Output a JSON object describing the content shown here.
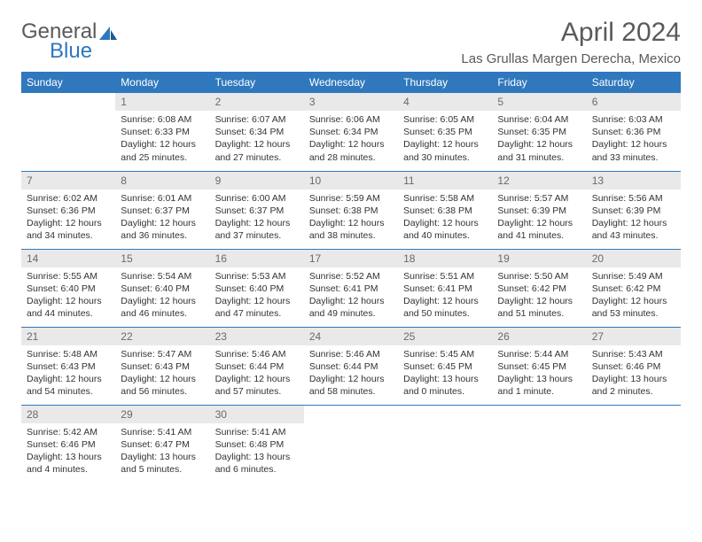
{
  "logo": {
    "text_left": "General",
    "text_right": "Blue"
  },
  "title": "April 2024",
  "location": "Las Grullas Margen Derecha, Mexico",
  "colors": {
    "header_bg": "#2f78bd",
    "header_text": "#ffffff",
    "daynum_bg": "#e9e9e9",
    "daynum_text": "#6a6a6a",
    "body_text": "#333333",
    "rule": "#2f78bd",
    "title_text": "#5a5a5a"
  },
  "weekdays": [
    "Sunday",
    "Monday",
    "Tuesday",
    "Wednesday",
    "Thursday",
    "Friday",
    "Saturday"
  ],
  "grid": [
    [
      {
        "empty": true
      },
      {
        "n": "1",
        "sr": "Sunrise: 6:08 AM",
        "ss": "Sunset: 6:33 PM",
        "dl": "Daylight: 12 hours and 25 minutes."
      },
      {
        "n": "2",
        "sr": "Sunrise: 6:07 AM",
        "ss": "Sunset: 6:34 PM",
        "dl": "Daylight: 12 hours and 27 minutes."
      },
      {
        "n": "3",
        "sr": "Sunrise: 6:06 AM",
        "ss": "Sunset: 6:34 PM",
        "dl": "Daylight: 12 hours and 28 minutes."
      },
      {
        "n": "4",
        "sr": "Sunrise: 6:05 AM",
        "ss": "Sunset: 6:35 PM",
        "dl": "Daylight: 12 hours and 30 minutes."
      },
      {
        "n": "5",
        "sr": "Sunrise: 6:04 AM",
        "ss": "Sunset: 6:35 PM",
        "dl": "Daylight: 12 hours and 31 minutes."
      },
      {
        "n": "6",
        "sr": "Sunrise: 6:03 AM",
        "ss": "Sunset: 6:36 PM",
        "dl": "Daylight: 12 hours and 33 minutes."
      }
    ],
    [
      {
        "n": "7",
        "sr": "Sunrise: 6:02 AM",
        "ss": "Sunset: 6:36 PM",
        "dl": "Daylight: 12 hours and 34 minutes."
      },
      {
        "n": "8",
        "sr": "Sunrise: 6:01 AM",
        "ss": "Sunset: 6:37 PM",
        "dl": "Daylight: 12 hours and 36 minutes."
      },
      {
        "n": "9",
        "sr": "Sunrise: 6:00 AM",
        "ss": "Sunset: 6:37 PM",
        "dl": "Daylight: 12 hours and 37 minutes."
      },
      {
        "n": "10",
        "sr": "Sunrise: 5:59 AM",
        "ss": "Sunset: 6:38 PM",
        "dl": "Daylight: 12 hours and 38 minutes."
      },
      {
        "n": "11",
        "sr": "Sunrise: 5:58 AM",
        "ss": "Sunset: 6:38 PM",
        "dl": "Daylight: 12 hours and 40 minutes."
      },
      {
        "n": "12",
        "sr": "Sunrise: 5:57 AM",
        "ss": "Sunset: 6:39 PM",
        "dl": "Daylight: 12 hours and 41 minutes."
      },
      {
        "n": "13",
        "sr": "Sunrise: 5:56 AM",
        "ss": "Sunset: 6:39 PM",
        "dl": "Daylight: 12 hours and 43 minutes."
      }
    ],
    [
      {
        "n": "14",
        "sr": "Sunrise: 5:55 AM",
        "ss": "Sunset: 6:40 PM",
        "dl": "Daylight: 12 hours and 44 minutes."
      },
      {
        "n": "15",
        "sr": "Sunrise: 5:54 AM",
        "ss": "Sunset: 6:40 PM",
        "dl": "Daylight: 12 hours and 46 minutes."
      },
      {
        "n": "16",
        "sr": "Sunrise: 5:53 AM",
        "ss": "Sunset: 6:40 PM",
        "dl": "Daylight: 12 hours and 47 minutes."
      },
      {
        "n": "17",
        "sr": "Sunrise: 5:52 AM",
        "ss": "Sunset: 6:41 PM",
        "dl": "Daylight: 12 hours and 49 minutes."
      },
      {
        "n": "18",
        "sr": "Sunrise: 5:51 AM",
        "ss": "Sunset: 6:41 PM",
        "dl": "Daylight: 12 hours and 50 minutes."
      },
      {
        "n": "19",
        "sr": "Sunrise: 5:50 AM",
        "ss": "Sunset: 6:42 PM",
        "dl": "Daylight: 12 hours and 51 minutes."
      },
      {
        "n": "20",
        "sr": "Sunrise: 5:49 AM",
        "ss": "Sunset: 6:42 PM",
        "dl": "Daylight: 12 hours and 53 minutes."
      }
    ],
    [
      {
        "n": "21",
        "sr": "Sunrise: 5:48 AM",
        "ss": "Sunset: 6:43 PM",
        "dl": "Daylight: 12 hours and 54 minutes."
      },
      {
        "n": "22",
        "sr": "Sunrise: 5:47 AM",
        "ss": "Sunset: 6:43 PM",
        "dl": "Daylight: 12 hours and 56 minutes."
      },
      {
        "n": "23",
        "sr": "Sunrise: 5:46 AM",
        "ss": "Sunset: 6:44 PM",
        "dl": "Daylight: 12 hours and 57 minutes."
      },
      {
        "n": "24",
        "sr": "Sunrise: 5:46 AM",
        "ss": "Sunset: 6:44 PM",
        "dl": "Daylight: 12 hours and 58 minutes."
      },
      {
        "n": "25",
        "sr": "Sunrise: 5:45 AM",
        "ss": "Sunset: 6:45 PM",
        "dl": "Daylight: 13 hours and 0 minutes."
      },
      {
        "n": "26",
        "sr": "Sunrise: 5:44 AM",
        "ss": "Sunset: 6:45 PM",
        "dl": "Daylight: 13 hours and 1 minute."
      },
      {
        "n": "27",
        "sr": "Sunrise: 5:43 AM",
        "ss": "Sunset: 6:46 PM",
        "dl": "Daylight: 13 hours and 2 minutes."
      }
    ],
    [
      {
        "n": "28",
        "sr": "Sunrise: 5:42 AM",
        "ss": "Sunset: 6:46 PM",
        "dl": "Daylight: 13 hours and 4 minutes."
      },
      {
        "n": "29",
        "sr": "Sunrise: 5:41 AM",
        "ss": "Sunset: 6:47 PM",
        "dl": "Daylight: 13 hours and 5 minutes."
      },
      {
        "n": "30",
        "sr": "Sunrise: 5:41 AM",
        "ss": "Sunset: 6:48 PM",
        "dl": "Daylight: 13 hours and 6 minutes."
      },
      {
        "empty": true
      },
      {
        "empty": true
      },
      {
        "empty": true
      },
      {
        "empty": true
      }
    ]
  ]
}
